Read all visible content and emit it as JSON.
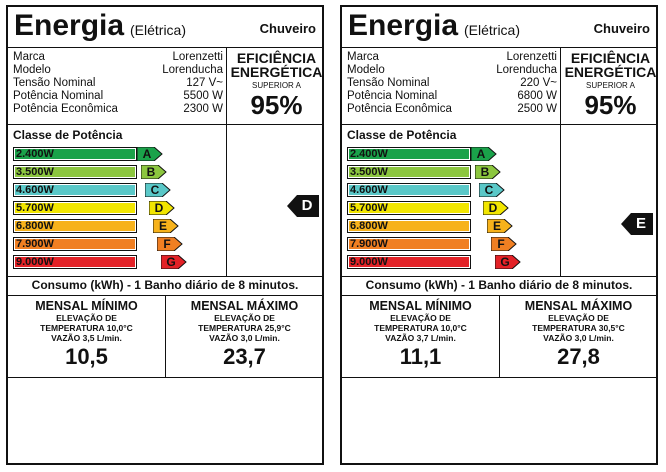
{
  "labels": [
    {
      "title": "Energia",
      "subtitle": "(Elétrica)",
      "product": "Chuveiro",
      "specs": [
        {
          "key": "Marca",
          "value": "Lorenzetti"
        },
        {
          "key": "Modelo",
          "value": "Lorenducha"
        },
        {
          "key": "Tensão Nominal",
          "value": "127 V~"
        },
        {
          "key": "Potência Nominal",
          "value": "5500 W"
        },
        {
          "key": "Potência Econômica",
          "value": "2300 W"
        }
      ],
      "efficiency": {
        "line1": "EFICIÊNCIA",
        "line2": "ENERGÉTICA",
        "line3": "SUPERIOR A",
        "value": "95%"
      },
      "class_header": "Classe de Potência",
      "classes": [
        {
          "power": "2.400W",
          "letter": "A"
        },
        {
          "power": "3.500W",
          "letter": "B"
        },
        {
          "power": "4.600W",
          "letter": "C"
        },
        {
          "power": "5.700W",
          "letter": "D"
        },
        {
          "power": "6.800W",
          "letter": "E"
        },
        {
          "power": "7.900W",
          "letter": "F"
        },
        {
          "power": "9.000W",
          "letter": "G"
        }
      ],
      "rating": "D",
      "consumo": "Consumo (kWh) - 1 Banho diário de 8 minutos.",
      "mensal_minimo": {
        "title": "MENSAL MÍNIMO",
        "line1": "ELEVAÇÃO DE",
        "line2": "TEMPERATURA 10,0°C",
        "line3": "VAZÃO 3,5 L/min.",
        "value": "10,5"
      },
      "mensal_maximo": {
        "title": "MENSAL MÁXIMO",
        "line1": "ELEVAÇÃO DE",
        "line2": "TEMPERATURA 25,9°C",
        "line3": "VAZÃO 3,0 L/min.",
        "value": "23,7"
      }
    },
    {
      "title": "Energia",
      "subtitle": "(Elétrica)",
      "product": "Chuveiro",
      "specs": [
        {
          "key": "Marca",
          "value": "Lorenzetti"
        },
        {
          "key": "Modelo",
          "value": "Lorenducha"
        },
        {
          "key": "Tensão Nominal",
          "value": "220 V~"
        },
        {
          "key": "Potência Nominal",
          "value": "6800 W"
        },
        {
          "key": "Potência Econômica",
          "value": "2500 W"
        }
      ],
      "efficiency": {
        "line1": "EFICIÊNCIA",
        "line2": "ENERGÉTICA",
        "line3": "SUPERIOR A",
        "value": "95%"
      },
      "class_header": "Classe de Potência",
      "classes": [
        {
          "power": "2.400W",
          "letter": "A"
        },
        {
          "power": "3.500W",
          "letter": "B"
        },
        {
          "power": "4.600W",
          "letter": "C"
        },
        {
          "power": "5.700W",
          "letter": "D"
        },
        {
          "power": "6.800W",
          "letter": "E"
        },
        {
          "power": "7.900W",
          "letter": "F"
        },
        {
          "power": "9.000W",
          "letter": "G"
        }
      ],
      "rating": "E",
      "consumo": "Consumo (kWh) - 1 Banho diário de 8 minutos.",
      "mensal_minimo": {
        "title": "MENSAL MÍNIMO",
        "line1": "ELEVAÇÃO DE",
        "line2": "TEMPERATURA 10,0°C",
        "line3": "VAZÃO 3,7 L/min.",
        "value": "11,1"
      },
      "mensal_maximo": {
        "title": "MENSAL MÁXIMO",
        "line1": "ELEVAÇÃO DE",
        "line2": "TEMPERATURA 30,5°C",
        "line3": "VAZÃO 3,0 L/min.",
        "value": "27,8"
      }
    }
  ],
  "class_colors": [
    "#1aa24a",
    "#8cc63f",
    "#5ac8c8",
    "#f2e600",
    "#f7b21b",
    "#f07f22",
    "#e32227"
  ],
  "marker_color": "#111111"
}
